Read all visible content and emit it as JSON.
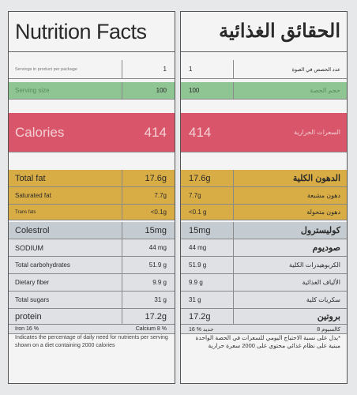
{
  "en": {
    "title": "Nutrition Facts",
    "rows": [
      {
        "label": "Servings in product per package",
        "value": "1"
      },
      {
        "label": "Serving size",
        "value": "100"
      },
      {
        "label": "Calories",
        "value": "414"
      },
      {
        "label": "Total fat",
        "value": "17.6g"
      },
      {
        "label": "Saturated fat",
        "value": "7.7g"
      },
      {
        "label": "Trans fats",
        "value": "<0.1g"
      },
      {
        "label": "Colestrol",
        "value": "15mg"
      },
      {
        "label": "SODIUM",
        "value": "44 mg"
      },
      {
        "label": "Total carbohydrates",
        "value": "51.9 g"
      },
      {
        "label": "Dietary fiber",
        "value": "9.9 g"
      },
      {
        "label": "Total sugars",
        "value": "31 g"
      },
      {
        "label": "protein",
        "value": "17.2g"
      },
      {
        "label": "Iron 16 %",
        "value": "Calcium 8 %"
      }
    ],
    "note": "Indicates the percentage of daily need for nutrients per serving shown on a diet containing 2000 calories"
  },
  "ar": {
    "title": "الحقائق الغذائية",
    "rows": [
      {
        "label": "عدد الحصص في العبوة",
        "value": "1"
      },
      {
        "label": "حجم الحصة",
        "value": "100"
      },
      {
        "label": "السعرات الحرارية",
        "value": "414"
      },
      {
        "label": "الدهون الكلية",
        "value": "17.6g"
      },
      {
        "label": "دهون مشبعة",
        "value": "7.7g"
      },
      {
        "label": "دهون متحولة",
        "value": "<0.1 g"
      },
      {
        "label": "كوليسترول",
        "value": "15mg"
      },
      {
        "label": "صوديوم",
        "value": "44  mg"
      },
      {
        "label": "الكربوهيدرات الكلية",
        "value": "51.9 g"
      },
      {
        "label": "الألياف الغذائية",
        "value": "9.9 g"
      },
      {
        "label": "سكريات كلية",
        "value": "31  g"
      },
      {
        "label": "بروتين",
        "value": "17.2g"
      },
      {
        "label": "كالسيوم 8",
        "value": "16 % حديد"
      }
    ],
    "note": "*يدل على نسبة الاحتياج اليومي للسعرات في الحصة الواحدة مبنية على نظام غذائي محتوي على 2000 سعرة حرارية"
  },
  "colors": {
    "serving": "#8fc493",
    "calories": "#d9566a",
    "fat": "#d9ad45",
    "gray": "#c4ccd2"
  }
}
